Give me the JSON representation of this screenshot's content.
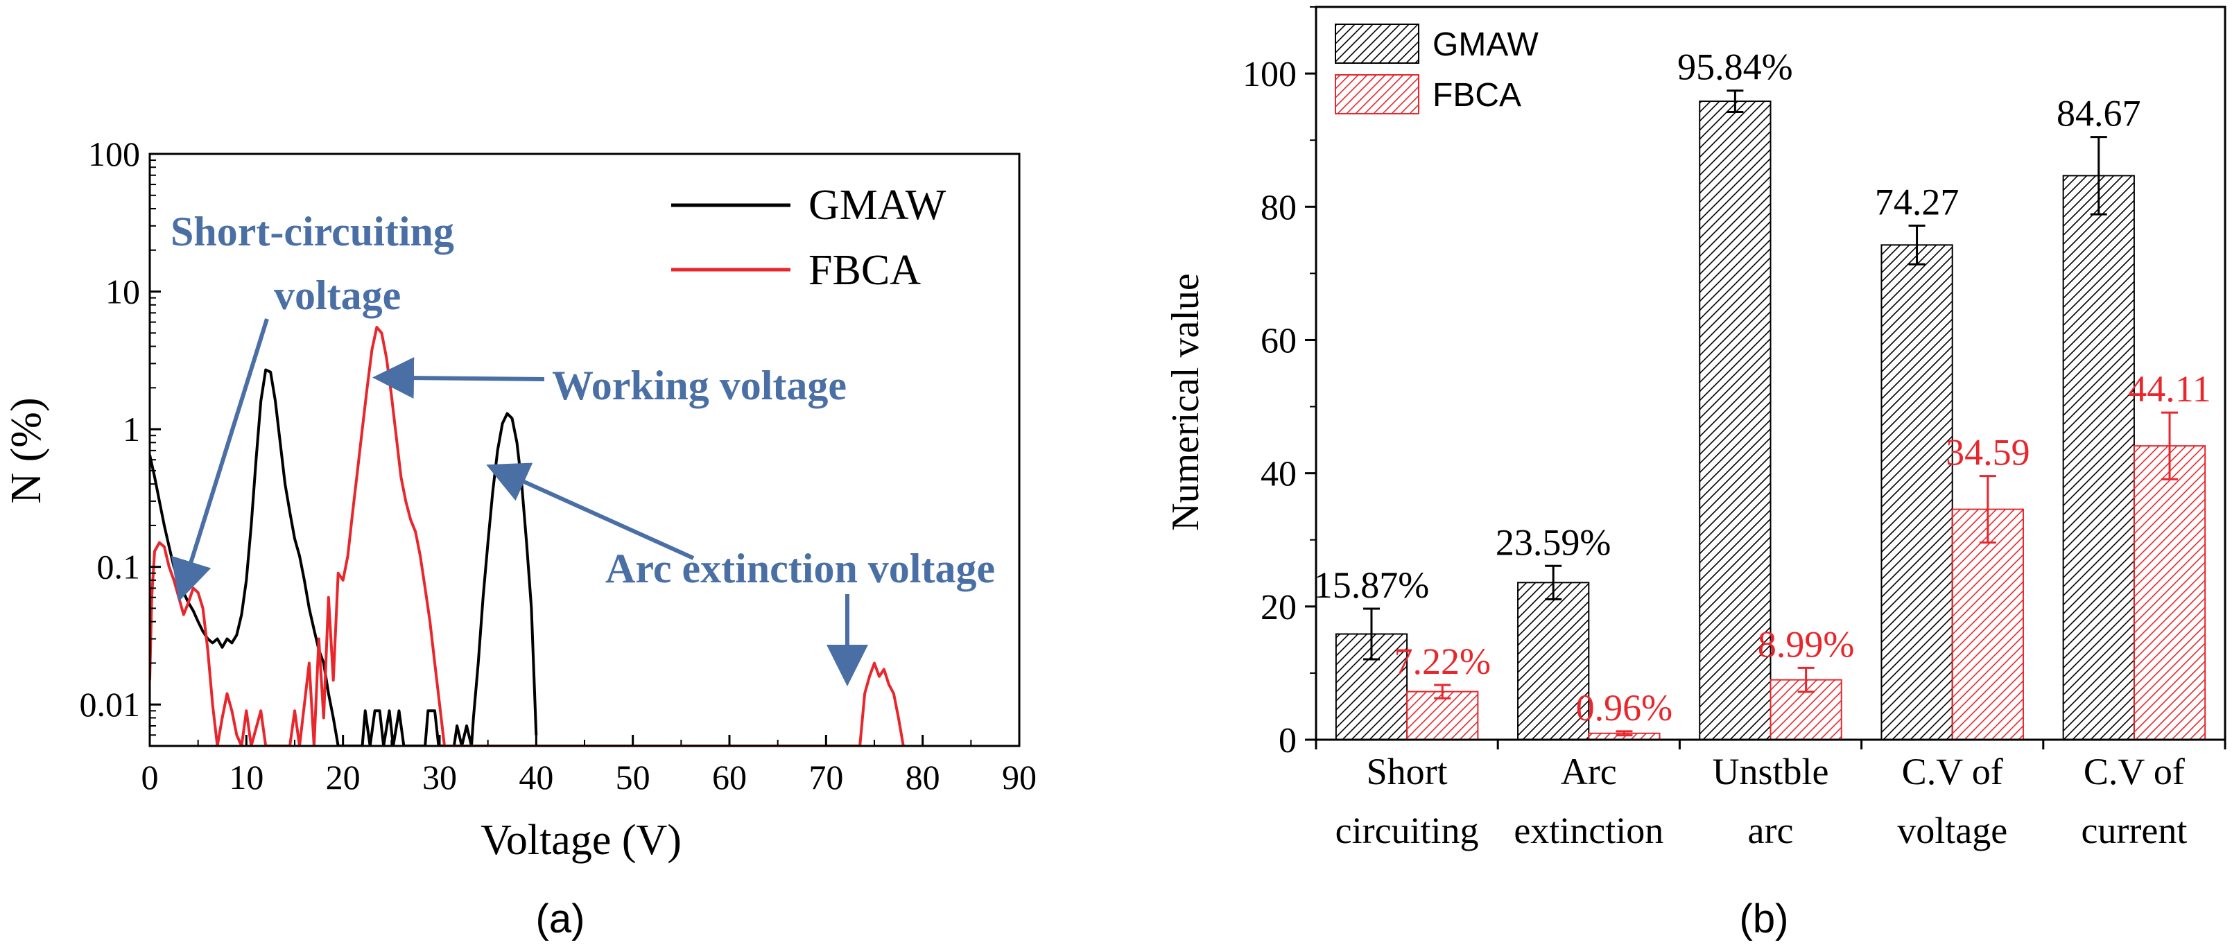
{
  "chart_data": [
    {
      "id": "a",
      "type": "line",
      "panel_label": "(a)",
      "xlabel": "Voltage (V)",
      "ylabel": "N (%)",
      "xlim": [
        0,
        90
      ],
      "ylim": [
        0.005,
        100
      ],
      "yscale": "log",
      "xticks": [
        0,
        10,
        20,
        30,
        40,
        50,
        60,
        70,
        80,
        90
      ],
      "xtick_labels": [
        "0",
        "10",
        "20",
        "30",
        "40",
        "50",
        "60",
        "70",
        "80",
        "90"
      ],
      "yticks": [
        0.01,
        0.1,
        1,
        10,
        100
      ],
      "ytick_labels": [
        "0.01",
        "0.1",
        "1",
        "10",
        "100"
      ],
      "legend_position": "top-right",
      "series": [
        {
          "name": "GMAW",
          "color": "#000000",
          "points": [
            [
              0,
              0.65
            ],
            [
              0.5,
              0.45
            ],
            [
              1,
              0.3
            ],
            [
              1.5,
              0.2
            ],
            [
              2,
              0.14
            ],
            [
              2.5,
              0.1
            ],
            [
              3,
              0.08
            ],
            [
              3.5,
              0.065
            ],
            [
              4,
              0.055
            ],
            [
              4.5,
              0.048
            ],
            [
              5,
              0.04
            ],
            [
              5.5,
              0.034
            ],
            [
              6,
              0.03
            ],
            [
              6.5,
              0.028
            ],
            [
              7,
              0.03
            ],
            [
              7.5,
              0.026
            ],
            [
              8,
              0.03
            ],
            [
              8.5,
              0.028
            ],
            [
              9,
              0.032
            ],
            [
              9.5,
              0.045
            ],
            [
              10,
              0.08
            ],
            [
              10.5,
              0.2
            ],
            [
              11,
              0.6
            ],
            [
              11.5,
              1.6
            ],
            [
              12,
              2.7
            ],
            [
              12.5,
              2.6
            ],
            [
              13,
              1.6
            ],
            [
              13.5,
              0.8
            ],
            [
              14,
              0.4
            ],
            [
              14.5,
              0.25
            ],
            [
              15,
              0.16
            ],
            [
              15.5,
              0.12
            ],
            [
              16,
              0.08
            ],
            [
              16.5,
              0.05
            ],
            [
              17,
              0.035
            ],
            [
              17.5,
              0.025
            ],
            [
              18,
              0.02
            ],
            [
              18.5,
              0.012
            ],
            [
              19,
              0.008
            ],
            [
              19.5,
              0.005
            ],
            [
              22,
              0.005
            ],
            [
              22.3,
              0.009
            ],
            [
              22.8,
              0.005
            ],
            [
              23.3,
              0.009
            ],
            [
              23.8,
              0.009
            ],
            [
              24.2,
              0.005
            ],
            [
              24.8,
              0.009
            ],
            [
              25.2,
              0.005
            ],
            [
              25.8,
              0.009
            ],
            [
              26.3,
              0.005
            ],
            [
              28.5,
              0.005
            ],
            [
              28.8,
              0.009
            ],
            [
              29.5,
              0.009
            ],
            [
              29.9,
              0.005
            ],
            [
              31.5,
              0.005
            ],
            [
              31.8,
              0.007
            ],
            [
              32.3,
              0.005
            ],
            [
              32.8,
              0.007
            ],
            [
              33.3,
              0.005
            ],
            [
              33.5,
              0.008
            ],
            [
              34,
              0.02
            ],
            [
              34.5,
              0.06
            ],
            [
              35,
              0.15
            ],
            [
              35.5,
              0.35
            ],
            [
              36,
              0.7
            ],
            [
              36.5,
              1.1
            ],
            [
              37,
              1.3
            ],
            [
              37.5,
              1.2
            ],
            [
              38,
              0.8
            ],
            [
              38.5,
              0.4
            ],
            [
              39,
              0.15
            ],
            [
              39.5,
              0.05
            ],
            [
              40,
              0.006
            ]
          ]
        },
        {
          "name": "FBCA",
          "color": "#e8262b",
          "points": [
            [
              0,
              0.015
            ],
            [
              0.2,
              0.06
            ],
            [
              0.5,
              0.13
            ],
            [
              1,
              0.15
            ],
            [
              1.5,
              0.14
            ],
            [
              2,
              0.1
            ],
            [
              2.5,
              0.08
            ],
            [
              3,
              0.06
            ],
            [
              3.5,
              0.045
            ],
            [
              4,
              0.055
            ],
            [
              4.5,
              0.07
            ],
            [
              5,
              0.065
            ],
            [
              5.5,
              0.05
            ],
            [
              6,
              0.025
            ],
            [
              6.5,
              0.01
            ],
            [
              7,
              0.005
            ],
            [
              7.5,
              0.008
            ],
            [
              8,
              0.012
            ],
            [
              8.5,
              0.009
            ],
            [
              9,
              0.006
            ],
            [
              9.5,
              0.005
            ],
            [
              10,
              0.009
            ],
            [
              10.5,
              0.005
            ],
            [
              11.5,
              0.009
            ],
            [
              12,
              0.005
            ],
            [
              14.5,
              0.005
            ],
            [
              15,
              0.009
            ],
            [
              15.5,
              0.005
            ],
            [
              16.5,
              0.02
            ],
            [
              17,
              0.005
            ],
            [
              17.5,
              0.03
            ],
            [
              18,
              0.008
            ],
            [
              18.5,
              0.06
            ],
            [
              19,
              0.015
            ],
            [
              19.5,
              0.09
            ],
            [
              20,
              0.08
            ],
            [
              20.5,
              0.12
            ],
            [
              21,
              0.25
            ],
            [
              21.5,
              0.5
            ],
            [
              22,
              1.0
            ],
            [
              22.5,
              2.0
            ],
            [
              23,
              3.8
            ],
            [
              23.5,
              5.5
            ],
            [
              24,
              5.0
            ],
            [
              24.5,
              3.3
            ],
            [
              25,
              1.8
            ],
            [
              25.5,
              0.9
            ],
            [
              26,
              0.45
            ],
            [
              26.5,
              0.3
            ],
            [
              27,
              0.22
            ],
            [
              27.5,
              0.18
            ],
            [
              28,
              0.12
            ],
            [
              28.5,
              0.07
            ],
            [
              29,
              0.04
            ],
            [
              29.5,
              0.02
            ],
            [
              30,
              0.01
            ],
            [
              30.5,
              0.005
            ],
            [
              73.5,
              0.005
            ],
            [
              74,
              0.012
            ],
            [
              74.5,
              0.016
            ],
            [
              75,
              0.02
            ],
            [
              75.5,
              0.016
            ],
            [
              76,
              0.018
            ],
            [
              76.5,
              0.014
            ],
            [
              77,
              0.012
            ],
            [
              77.5,
              0.008
            ],
            [
              78,
              0.005
            ]
          ]
        }
      ],
      "annotations": [
        {
          "text_lines": [
            "Short-circuiting",
            "voltage"
          ],
          "target": [
            4.5,
            0.08
          ]
        },
        {
          "text_lines": [
            "Working voltage"
          ],
          "target": [
            24.5,
            4.3
          ]
        },
        {
          "text_lines": [
            "Arc extinction voltage"
          ],
          "target": [
            37.5,
            1.1
          ]
        },
        {
          "text_lines": [],
          "target": [
            75.2,
            0.022
          ]
        }
      ]
    },
    {
      "id": "b",
      "type": "bar",
      "panel_label": "(b)",
      "ylabel": "Numerical value",
      "ylim": [
        0,
        110
      ],
      "yticks": [
        0,
        20,
        40,
        60,
        80,
        100
      ],
      "ytick_labels": [
        "0",
        "20",
        "40",
        "60",
        "80",
        "100"
      ],
      "categories": [
        [
          "Short",
          "circuiting"
        ],
        [
          "Arc",
          "extinction"
        ],
        [
          "Unstble",
          "arc"
        ],
        [
          "C.V of",
          "voltage"
        ],
        [
          "C.V of",
          "current"
        ]
      ],
      "legend_position": "top-left",
      "series": [
        {
          "name": "GMAW",
          "color": "#000000",
          "values": [
            15.87,
            23.59,
            95.84,
            74.27,
            84.67
          ],
          "errors": [
            3.8,
            2.5,
            1.6,
            2.9,
            5.8
          ],
          "labels": [
            "15.87%",
            "23.59%",
            "95.84%",
            "74.27",
            "84.67"
          ]
        },
        {
          "name": "FBCA",
          "color": "#e8262b",
          "values": [
            7.22,
            0.96,
            8.99,
            34.59,
            44.11
          ],
          "errors": [
            1.0,
            0.3,
            1.8,
            5.0,
            5.0
          ],
          "labels": [
            "7.22%",
            "0.96%",
            "8.99%",
            "34.59",
            "44.11"
          ]
        }
      ]
    }
  ]
}
